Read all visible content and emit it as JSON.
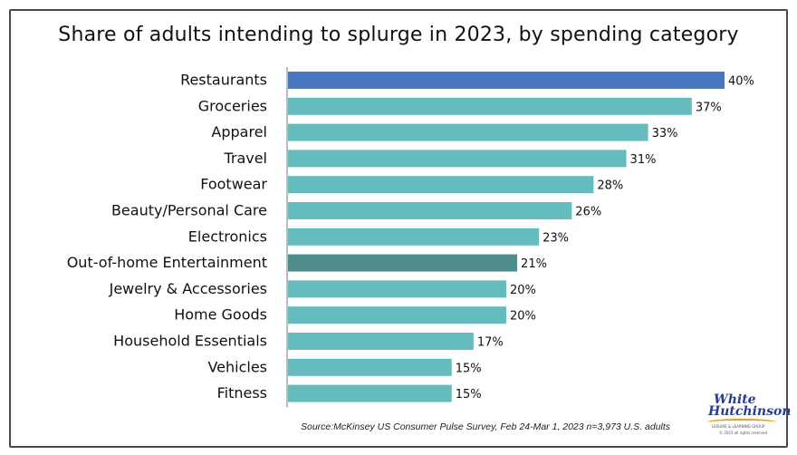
{
  "chart_data": {
    "type": "bar",
    "orientation": "horizontal",
    "title": "Share of adults intending to splurge in 2023, by spending category",
    "categories": [
      "Restaurants",
      "Groceries",
      "Apparel",
      "Travel",
      "Footwear",
      "Beauty/Personal Care",
      "Electronics",
      "Out-of-home Entertainment",
      "Jewelry & Accessories",
      "Home Goods",
      "Household Essentials",
      "Vehicles",
      "Fitness"
    ],
    "values": [
      40,
      37,
      33,
      31,
      28,
      26,
      23,
      21,
      20,
      20,
      17,
      15,
      15
    ],
    "value_labels": [
      "40%",
      "37%",
      "33%",
      "31%",
      "28%",
      "26%",
      "23%",
      "21%",
      "20%",
      "20%",
      "17%",
      "15%",
      "15%"
    ],
    "unit": "%",
    "xlim": [
      0,
      40
    ],
    "grid": false,
    "legend": "none",
    "colors": {
      "default": "#65bcbc",
      "highlight_restaurants": "#4a78c0",
      "highlight_entertainment": "#4f8c8c",
      "axis": "#777777"
    },
    "source": "Source:McKinsey US Consumer Pulse Survey, Feb 24-Mar 1, 2023 n=3,973 U.S. adults"
  },
  "logo": {
    "line1": "White",
    "line2": "Hutchinson",
    "tagline": "LEISURE & LEARNING GROUP",
    "copyright": "© 2023 all rights reserved"
  }
}
